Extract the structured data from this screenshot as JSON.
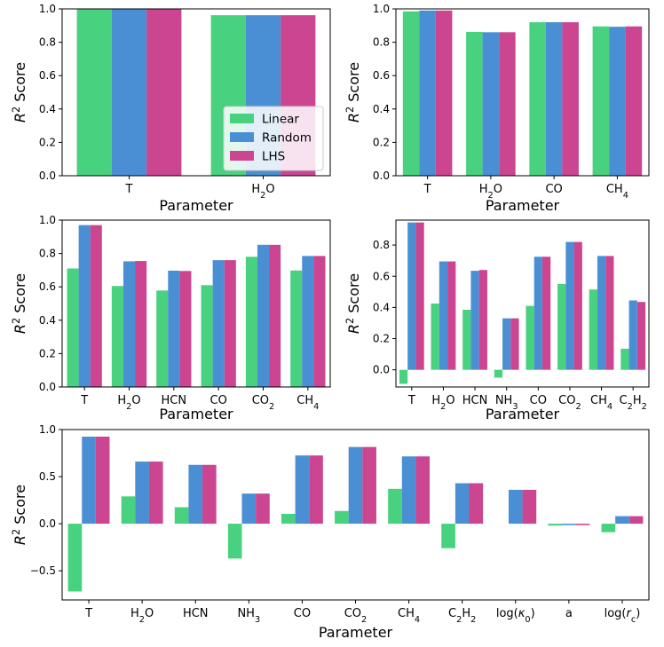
{
  "figure": {
    "colors": {
      "Linear": "#48d17f",
      "Random": "#4a8fd3",
      "LHS": "#cb4591"
    },
    "legend": [
      "Linear",
      "Random",
      "LHS"
    ]
  },
  "chart_data": [
    {
      "type": "bar",
      "title": "",
      "xlabel": "Parameter",
      "ylabel": "R2 Score",
      "categories": [
        "T",
        "H2O"
      ],
      "ylim": [
        0,
        1.0
      ],
      "yticks": [
        "0.0",
        "0.2",
        "0.4",
        "0.6",
        "0.8",
        "1.0"
      ],
      "legend_position": "lower-right",
      "series": [
        {
          "name": "Linear",
          "values": [
            0.998,
            0.962
          ]
        },
        {
          "name": "Random",
          "values": [
            0.998,
            0.962
          ]
        },
        {
          "name": "LHS",
          "values": [
            0.998,
            0.962
          ]
        }
      ]
    },
    {
      "type": "bar",
      "title": "",
      "xlabel": "Parameter",
      "ylabel": "R2 Score",
      "categories": [
        "T",
        "H2O",
        "CO",
        "CH4"
      ],
      "ylim": [
        0,
        1.0
      ],
      "yticks": [
        "0.0",
        "0.2",
        "0.4",
        "0.6",
        "0.8",
        "1.0"
      ],
      "series": [
        {
          "name": "Linear",
          "values": [
            0.985,
            0.862,
            0.92,
            0.895
          ]
        },
        {
          "name": "Random",
          "values": [
            0.99,
            0.86,
            0.92,
            0.893
          ]
        },
        {
          "name": "LHS",
          "values": [
            0.99,
            0.86,
            0.92,
            0.895
          ]
        }
      ]
    },
    {
      "type": "bar",
      "title": "",
      "xlabel": "Parameter",
      "ylabel": "R2 Score",
      "categories": [
        "T",
        "H2O",
        "HCN",
        "CO",
        "CO2",
        "CH4"
      ],
      "ylim": [
        0,
        1.0
      ],
      "yticks": [
        "0.0",
        "0.2",
        "0.4",
        "0.6",
        "0.8",
        "1.0"
      ],
      "series": [
        {
          "name": "Linear",
          "values": [
            0.71,
            0.605,
            0.578,
            0.61,
            0.78,
            0.698
          ]
        },
        {
          "name": "Random",
          "values": [
            0.97,
            0.753,
            0.697,
            0.76,
            0.852,
            0.785
          ]
        },
        {
          "name": "LHS",
          "values": [
            0.97,
            0.755,
            0.695,
            0.76,
            0.852,
            0.785
          ]
        }
      ]
    },
    {
      "type": "bar",
      "title": "",
      "xlabel": "Parameter",
      "ylabel": "R2 Score",
      "categories": [
        "T",
        "H2O",
        "HCN",
        "NH3",
        "CO",
        "CO2",
        "CH4",
        "C2H2"
      ],
      "ylim": [
        -0.11,
        0.96
      ],
      "yticks": [
        "0.0",
        "0.2",
        "0.4",
        "0.6",
        "0.8"
      ],
      "series": [
        {
          "name": "Linear",
          "values": [
            -0.09,
            0.425,
            0.385,
            -0.05,
            0.41,
            0.55,
            0.515,
            0.135
          ]
        },
        {
          "name": "Random",
          "values": [
            0.945,
            0.695,
            0.635,
            0.33,
            0.725,
            0.82,
            0.73,
            0.445
          ]
        },
        {
          "name": "LHS",
          "values": [
            0.945,
            0.695,
            0.64,
            0.33,
            0.725,
            0.82,
            0.73,
            0.435
          ]
        }
      ]
    },
    {
      "type": "bar",
      "title": "",
      "xlabel": "Parameter",
      "ylabel": "R2 Score",
      "categories": [
        "T",
        "H2O",
        "HCN",
        "NH3",
        "CO",
        "CO2",
        "CH4",
        "C2H2",
        "log(κ0)",
        "a",
        "log(rc)"
      ],
      "ylim": [
        -0.81,
        1.0
      ],
      "yticks": [
        "-0.5",
        "0.0",
        "0.5",
        "1.0"
      ],
      "series": [
        {
          "name": "Linear",
          "values": [
            -0.72,
            0.29,
            0.175,
            -0.37,
            0.105,
            0.135,
            0.37,
            -0.26,
            0.0,
            -0.02,
            -0.09
          ]
        },
        {
          "name": "Random",
          "values": [
            0.925,
            0.66,
            0.625,
            0.32,
            0.725,
            0.815,
            0.715,
            0.43,
            0.36,
            -0.015,
            0.08
          ]
        },
        {
          "name": "LHS",
          "values": [
            0.925,
            0.66,
            0.625,
            0.32,
            0.725,
            0.815,
            0.715,
            0.43,
            0.36,
            -0.015,
            0.08
          ]
        }
      ]
    }
  ]
}
